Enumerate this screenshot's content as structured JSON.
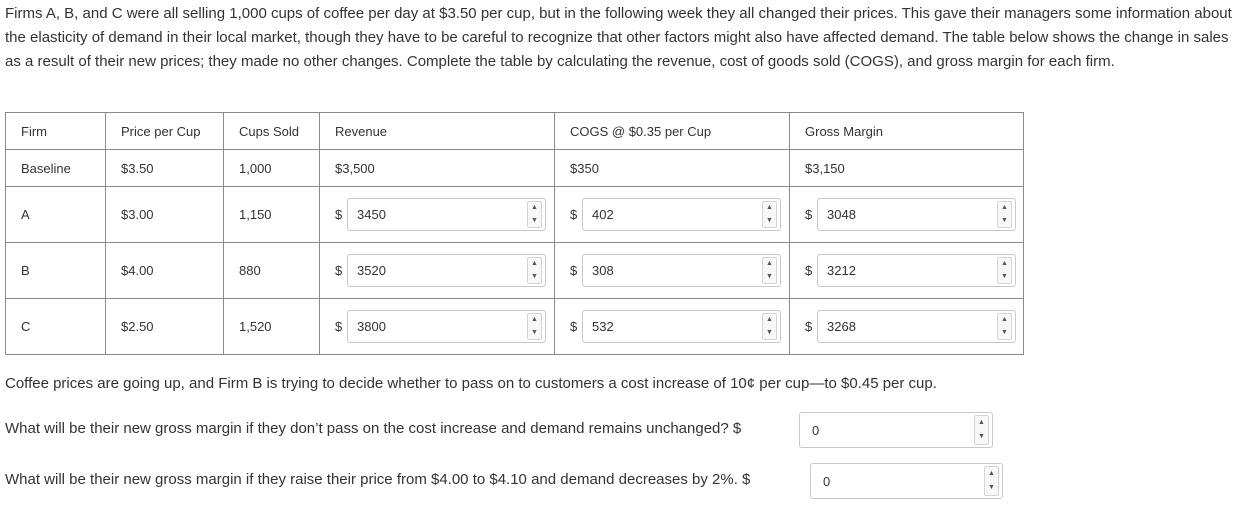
{
  "intro": "Firms A, B, and C were all selling 1,000 cups of coffee per day at $3.50 per cup, but in the following week they all changed their prices. This gave their managers some information about the elasticity of demand in their local market, though they have to be careful to recognize that other factors might also have affected demand. The table below shows the change in sales as a result of their new prices; they made no other changes. Complete the table by calculating the revenue, cost of goods sold (COGS), and gross margin for each firm.",
  "table": {
    "headers": [
      "Firm",
      "Price per Cup",
      "Cups Sold",
      "Revenue",
      "COGS @ $0.35 per Cup",
      "Gross Margin"
    ],
    "baseline": {
      "firm": "Baseline",
      "price": "$3.50",
      "cups": "1,000",
      "revenue": "$3,500",
      "cogs": "$350",
      "margin": "$3,150"
    },
    "rows": [
      {
        "firm": "A",
        "price": "$3.00",
        "cups": "1,150",
        "revenue": "3450",
        "cogs": "402",
        "margin": "3048"
      },
      {
        "firm": "B",
        "price": "$4.00",
        "cups": "880",
        "revenue": "3520",
        "cogs": "308",
        "margin": "3212"
      },
      {
        "firm": "C",
        "price": "$2.50",
        "cups": "1,520",
        "revenue": "3800",
        "cogs": "532",
        "margin": "3268"
      }
    ],
    "currency_symbol": "$"
  },
  "questions": {
    "intro": "Coffee prices are going up, and Firm B is trying to decide whether to pass on to customers a cost increase of 10¢ per cup—to $0.45 per cup.",
    "q1": {
      "text": "What will be their new gross margin if they don’t pass on the cost increase and demand remains unchanged? $",
      "value": "0"
    },
    "q2": {
      "text": "What will be their new gross margin if they raise their price from $4.00 to $4.10 and demand decreases by 2%. $",
      "value": "0"
    }
  },
  "icons": {
    "spinner_up": "triangle-up",
    "spinner_down": "triangle-down"
  }
}
